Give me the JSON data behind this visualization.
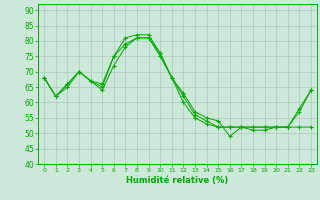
{
  "xlabel": "Humidité relative (%)",
  "background_color": "#cce8d8",
  "grid_color": "#aaccbb",
  "line_color": "#00aa00",
  "xlim": [
    -0.5,
    23.5
  ],
  "ylim": [
    40,
    92
  ],
  "yticks": [
    40,
    45,
    50,
    55,
    60,
    65,
    70,
    75,
    80,
    85,
    90
  ],
  "xticks": [
    0,
    1,
    2,
    3,
    4,
    5,
    6,
    7,
    8,
    9,
    10,
    11,
    12,
    13,
    14,
    15,
    16,
    17,
    18,
    19,
    20,
    21,
    22,
    23
  ],
  "series_data": {
    "line1": [
      68,
      62,
      66,
      70,
      67,
      66,
      75,
      81,
      82,
      82,
      76,
      68,
      63,
      57,
      55,
      54,
      49,
      52,
      52,
      52,
      52,
      52,
      52,
      52
    ],
    "line2": [
      68,
      62,
      66,
      70,
      67,
      65,
      75,
      79,
      81,
      81,
      76,
      68,
      62,
      56,
      54,
      52,
      52,
      52,
      52,
      52,
      52,
      52,
      58,
      64
    ],
    "line3": [
      68,
      62,
      65,
      70,
      67,
      64,
      72,
      78,
      81,
      81,
      75,
      68,
      60,
      55,
      53,
      52,
      52,
      52,
      51,
      51,
      52,
      52,
      57,
      64
    ]
  }
}
